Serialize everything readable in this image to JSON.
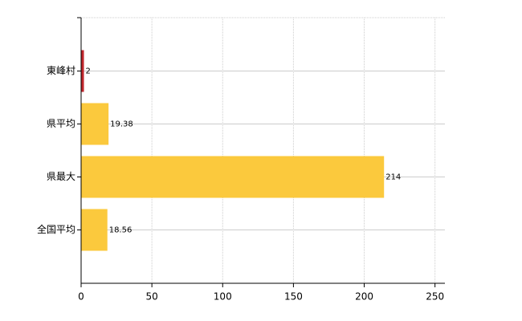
{
  "chart_data": {
    "type": "barh",
    "categories": [
      "東峰村",
      "県平均",
      "県最大",
      "全国平均"
    ],
    "values": [
      2,
      19.38,
      214,
      18.56
    ],
    "colors": [
      "#c0262c",
      "#fbc93d",
      "#fbc93d",
      "#fbc93d"
    ],
    "xlim": [
      0,
      257
    ],
    "xticks": [
      0,
      50,
      100,
      150,
      200,
      250
    ],
    "grid": true
  }
}
